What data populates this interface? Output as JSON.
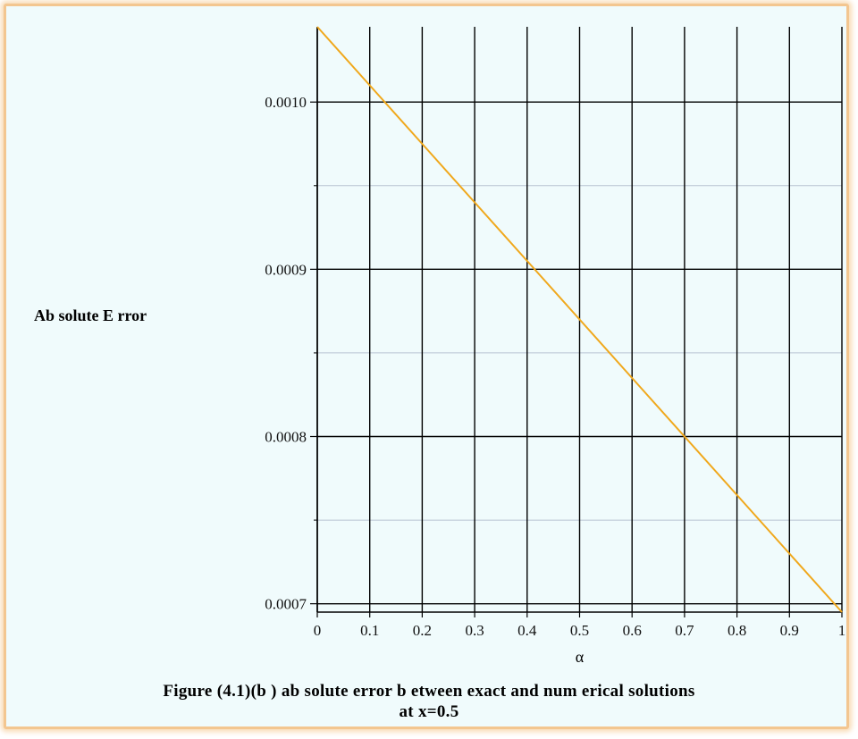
{
  "chart_data": {
    "type": "line",
    "title": "",
    "xlabel": "α",
    "ylabel": "Ab solute E rror",
    "xlim": [
      0,
      1
    ],
    "ylim": [
      0.000695,
      0.001045
    ],
    "x_ticks": [
      0,
      0.1,
      0.2,
      0.3,
      0.4,
      0.5,
      0.6,
      0.7,
      0.8,
      0.9,
      1
    ],
    "x_tick_labels": [
      "0",
      "0.1",
      "0.2",
      "0.3",
      "0.4",
      "0.5",
      "0.6",
      "0.7",
      "0.8",
      "0.9",
      "1"
    ],
    "y_ticks": [
      0.0007,
      0.0008,
      0.0009,
      0.001
    ],
    "y_tick_labels": [
      "0.0007",
      "0.0008",
      "0.0009",
      "0.0010"
    ],
    "y_minor_ticks": [
      0.00075,
      0.00085,
      0.00095
    ],
    "grid": true,
    "series": [
      {
        "name": "",
        "color": "#f0a81c",
        "x": [
          0,
          0.1,
          0.2,
          0.3,
          0.4,
          0.5,
          0.6,
          0.7,
          0.8,
          0.9,
          1
        ],
        "y": [
          0.001045,
          0.00101,
          0.000975,
          0.00094,
          0.000905,
          0.00087,
          0.000835,
          0.0008,
          0.000765,
          0.00073,
          0.000695
        ]
      }
    ]
  },
  "caption": {
    "line1": "Figure (4.1)(b ) ab solute error b etween exact and num erical solutions",
    "line2": "at x=0.5"
  },
  "colors": {
    "background": "#f0fbfc",
    "frame": "#f3c690",
    "major_grid": "#000000",
    "minor_grid": "#b8c4d2",
    "curve": "#f0a81c"
  }
}
